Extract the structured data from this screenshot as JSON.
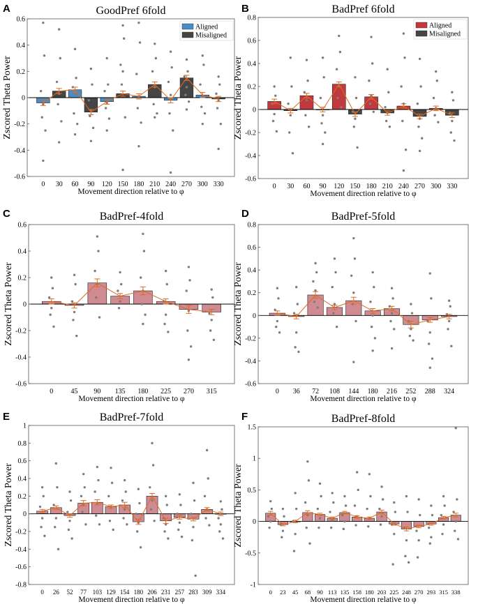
{
  "figure": {
    "xlabel": "Movement direction relative to φ",
    "ylabel": "Zscored Theta Power"
  },
  "colors": {
    "aligned_blue": "#4a8cc4",
    "misaligned_gray": "#454545",
    "aligned_red": "#c1393f",
    "pink_bar": "#cf8a92",
    "line_orange": "#e06a1e",
    "dot_gray": "#7d7d7d"
  },
  "chart_data": [
    {
      "letter": "A",
      "type": "bar",
      "title": "GoodPref 6fold",
      "xlabel": "Movement direction relative to φ",
      "ylabel": "Zscored Theta Power",
      "categories": [
        "0",
        "30",
        "60",
        "90",
        "120",
        "150",
        "180",
        "210",
        "240",
        "270",
        "300",
        "330"
      ],
      "values": [
        -0.04,
        0.05,
        0.06,
        -0.11,
        -0.03,
        0.03,
        0.01,
        0.1,
        -0.02,
        0.15,
        0.02,
        -0.01
      ],
      "errors": [
        0.02,
        0.02,
        0.02,
        0.02,
        0.02,
        0.02,
        0.02,
        0.02,
        0.02,
        0.02,
        0.02,
        0.02
      ],
      "bar_groups": [
        "aligned",
        "misaligned",
        "aligned",
        "misaligned",
        "aligned",
        "misaligned",
        "aligned",
        "misaligned",
        "aligned",
        "misaligned",
        "aligned",
        "misaligned"
      ],
      "legend": [
        {
          "label": "Aligned",
          "group": "aligned"
        },
        {
          "label": "Misaligned",
          "group": "misaligned"
        }
      ],
      "ylim": [
        -0.6,
        0.6
      ],
      "yticks": [
        -0.6,
        -0.4,
        -0.2,
        0,
        0.2,
        0.4,
        0.6
      ],
      "ytick_labels": [
        "-0.6",
        "-0.4",
        "-0.2",
        "0",
        "0.2",
        "0.4",
        "0.6"
      ],
      "scatter": [
        [
          0.57,
          0.32,
          0.05,
          -0.05,
          -0.15,
          -0.25,
          -0.48
        ],
        [
          0.52,
          0.3,
          0.12,
          0.03,
          -0.05,
          -0.18,
          -0.34
        ],
        [
          0.37,
          0.15,
          0.08,
          0.02,
          -0.12,
          -0.2,
          -0.28
        ],
        [
          0.22,
          0.1,
          -0.02,
          -0.1,
          -0.14,
          -0.23,
          -0.33
        ],
        [
          0.3,
          0.1,
          0.05,
          -0.04,
          -0.08,
          -0.16,
          -0.25
        ],
        [
          0.55,
          0.45,
          0.25,
          0.2,
          0.1,
          -0.15,
          -0.55
        ],
        [
          0.57,
          0.42,
          0.18,
          0.01,
          -0.08,
          -0.19,
          -0.37
        ],
        [
          0.41,
          0.3,
          0.2,
          0.08,
          -0.05,
          -0.12,
          -0.15
        ],
        [
          0.35,
          0.23,
          0.12,
          0.02,
          -0.12,
          -0.25,
          -0.57
        ],
        [
          0.29,
          0.2,
          0.16,
          0.08,
          0.02,
          -0.03,
          -0.09
        ],
        [
          0.32,
          0.25,
          0.1,
          0.01,
          -0.07,
          -0.12,
          -0.2
        ],
        [
          0.16,
          0.1,
          0.03,
          -0.02,
          -0.08,
          -0.2,
          -0.39
        ]
      ]
    },
    {
      "letter": "B",
      "type": "bar",
      "title": "BadPref 6fold",
      "xlabel": "Movement direction relative to φ",
      "ylabel": "Zscored Theta Power",
      "categories": [
        "0",
        "30",
        "60",
        "90",
        "120",
        "150",
        "180",
        "210",
        "240",
        "270",
        "300",
        "330"
      ],
      "values": [
        0.07,
        -0.01,
        0.12,
        0.0,
        0.22,
        -0.04,
        0.11,
        -0.03,
        0.03,
        -0.06,
        0.01,
        -0.05
      ],
      "errors": [
        0.02,
        0.02,
        0.02,
        0.02,
        0.02,
        0.02,
        0.02,
        0.02,
        0.02,
        0.02,
        0.02,
        0.02
      ],
      "bar_groups": [
        "aligned",
        "misaligned",
        "aligned",
        "misaligned",
        "aligned",
        "misaligned",
        "aligned",
        "misaligned",
        "aligned",
        "misaligned",
        "aligned",
        "misaligned"
      ],
      "legend": [
        {
          "label": "Aligned",
          "group": "aligned"
        },
        {
          "label": "Misaligned",
          "group": "misaligned"
        }
      ],
      "ylim": [
        -0.6,
        0.8
      ],
      "yticks": [
        -0.6,
        -0.4,
        -0.2,
        0,
        0.2,
        0.4,
        0.6,
        0.8
      ],
      "ytick_labels": [
        "-0.6",
        "-0.4",
        "-0.2",
        "0",
        "0.2",
        "0.4",
        "0.6",
        "0.8"
      ],
      "scatter": [
        [
          0.2,
          0.12,
          0.05,
          -0.04,
          -0.1,
          -0.19
        ],
        [
          0.45,
          0.2,
          0.05,
          -0.05,
          -0.2,
          -0.38
        ],
        [
          0.43,
          0.25,
          0.15,
          0.08,
          -0.05,
          -0.15
        ],
        [
          0.45,
          0.28,
          0.1,
          -0.05,
          -0.12,
          -0.2,
          -0.3
        ],
        [
          0.64,
          0.5,
          0.35,
          0.2,
          0.1,
          0.02
        ],
        [
          0.28,
          0.1,
          -0.02,
          -0.08,
          -0.15,
          -0.33
        ],
        [
          0.63,
          0.4,
          0.25,
          0.12,
          0.05,
          -0.02
        ],
        [
          0.35,
          0.15,
          0.02,
          -0.03,
          -0.1,
          -0.15
        ],
        [
          0.66,
          0.45,
          0.2,
          0.05,
          -0.1,
          -0.35,
          -0.53
        ],
        [
          0.44,
          0.2,
          0.05,
          -0.08,
          -0.15,
          -0.25,
          -0.36
        ],
        [
          0.33,
          0.25,
          0.1,
          0.01,
          -0.05,
          -0.11
        ],
        [
          0.15,
          0.08,
          -0.03,
          -0.1,
          -0.2,
          -0.27
        ]
      ]
    },
    {
      "letter": "C",
      "type": "bar",
      "title": "BadPref-4fold",
      "xlabel": "Movement direction relative to φ",
      "ylabel": "Zscored Theta Power",
      "categories": [
        "0",
        "45",
        "90",
        "135",
        "180",
        "225",
        "270",
        "315"
      ],
      "values": [
        0.02,
        -0.01,
        0.16,
        0.06,
        0.1,
        0.02,
        -0.04,
        -0.06
      ],
      "errors": [
        0.02,
        0.02,
        0.03,
        0.02,
        0.03,
        0.02,
        0.03,
        0.02
      ],
      "ylim": [
        -0.6,
        0.6
      ],
      "yticks": [
        -0.6,
        -0.4,
        -0.2,
        0,
        0.2,
        0.4,
        0.6
      ],
      "ytick_labels": [
        "-0.6",
        "-0.4",
        "-0.2",
        "0",
        "0.2",
        "0.4",
        "0.6"
      ],
      "scatter": [
        [
          0.2,
          0.12,
          0.05,
          -0.03,
          -0.08,
          -0.17
        ],
        [
          0.22,
          0.15,
          0.02,
          -0.06,
          -0.12,
          -0.24
        ],
        [
          0.51,
          0.4,
          0.25,
          0.15,
          0.05,
          -0.1
        ],
        [
          0.24,
          0.15,
          0.1,
          0.02,
          -0.03
        ],
        [
          0.53,
          0.4,
          0.2,
          0.1,
          0.0,
          -0.08,
          -0.15
        ],
        [
          0.25,
          0.15,
          0.02,
          -0.08,
          -0.15,
          -0.21
        ],
        [
          0.28,
          0.18,
          0.1,
          -0.05,
          -0.2,
          -0.32,
          -0.42
        ],
        [
          0.11,
          0.05,
          -0.07,
          -0.12,
          -0.2,
          -0.27
        ]
      ]
    },
    {
      "letter": "D",
      "type": "bar",
      "title": "BadPref-5fold",
      "xlabel": "Movement direction relative to φ",
      "ylabel": "Zscored Theta Power",
      "categories": [
        "0",
        "36",
        "72",
        "108",
        "144",
        "180",
        "216",
        "252",
        "288",
        "324"
      ],
      "values": [
        0.02,
        -0.01,
        0.18,
        0.07,
        0.13,
        0.04,
        0.06,
        -0.08,
        -0.04,
        -0.01
      ],
      "errors": [
        0.02,
        0.02,
        0.03,
        0.02,
        0.03,
        0.02,
        0.02,
        0.03,
        0.02,
        0.02
      ],
      "ylim": [
        -0.6,
        0.8
      ],
      "yticks": [
        -0.6,
        -0.4,
        -0.2,
        0,
        0.2,
        0.4,
        0.6,
        0.8
      ],
      "ytick_labels": [
        "-0.6",
        "-0.4",
        "-0.2",
        "0",
        "0.2",
        "0.4",
        "0.6",
        "0.8"
      ],
      "scatter": [
        [
          0.24,
          0.15,
          0.05,
          -0.05,
          -0.1,
          -0.15
        ],
        [
          0.25,
          0.1,
          0.02,
          -0.15,
          -0.28,
          -0.32
        ],
        [
          0.46,
          0.38,
          0.3,
          0.22,
          0.12,
          0.07
        ],
        [
          0.5,
          0.38,
          0.25,
          0.1,
          0.02,
          -0.1
        ],
        [
          0.68,
          0.5,
          0.35,
          0.2,
          0.1,
          -0.05,
          -0.41
        ],
        [
          0.38,
          0.25,
          0.12,
          0.0,
          -0.1,
          -0.2,
          -0.31
        ],
        [
          0.24,
          0.15,
          0.08,
          0.02,
          -0.05,
          -0.12,
          -0.29
        ],
        [
          0.1,
          0.02,
          -0.05,
          -0.12,
          -0.18,
          -0.22
        ],
        [
          0.37,
          0.15,
          -0.05,
          -0.15,
          -0.25,
          -0.38,
          -0.46
        ],
        [
          0.13,
          0.08,
          0.01,
          -0.05,
          -0.12,
          -0.27
        ]
      ]
    },
    {
      "letter": "E",
      "type": "bar",
      "title": "BadPref-7fold",
      "xlabel": "Movement direction relative to φ",
      "ylabel": "Zscored Theta Power",
      "categories": [
        "0",
        "26",
        "52",
        "77",
        "103",
        "129",
        "154",
        "180",
        "206",
        "231",
        "257",
        "283",
        "309",
        "334"
      ],
      "values": [
        0.03,
        0.07,
        -0.02,
        0.12,
        0.13,
        0.08,
        0.1,
        -0.09,
        0.2,
        -0.08,
        -0.04,
        -0.06,
        0.05,
        0.0
      ],
      "errors": [
        0.02,
        0.02,
        0.02,
        0.03,
        0.03,
        0.02,
        0.03,
        0.03,
        0.03,
        0.03,
        0.02,
        0.02,
        0.02,
        0.02
      ],
      "ylim": [
        -0.8,
        1.0
      ],
      "yticks": [
        -0.8,
        -0.6,
        -0.4,
        -0.2,
        0,
        0.2,
        0.4,
        0.6,
        0.8,
        1.0
      ],
      "ytick_labels": [
        "-0.8",
        "-0.6",
        "-0.4",
        "-0.2",
        "0",
        "0.2",
        "0.4",
        "0.6",
        "0.8",
        "1"
      ],
      "scatter": [
        [
          0.3,
          0.2,
          0.08,
          -0.05,
          -0.15,
          -0.25
        ],
        [
          0.57,
          0.3,
          0.1,
          -0.05,
          -0.15,
          -0.4
        ],
        [
          0.25,
          0.15,
          0.02,
          -0.08,
          -0.18,
          -0.28
        ],
        [
          0.45,
          0.3,
          0.2,
          0.1,
          0.02,
          -0.12
        ],
        [
          0.53,
          0.38,
          0.25,
          0.12,
          -0.02,
          -0.12
        ],
        [
          0.52,
          0.35,
          0.2,
          0.08,
          -0.08,
          -0.18
        ],
        [
          0.38,
          0.25,
          0.15,
          0.05,
          -0.05,
          -0.12
        ],
        [
          0.28,
          0.12,
          0.0,
          -0.1,
          -0.2,
          -0.38
        ],
        [
          0.8,
          0.55,
          0.3,
          0.15,
          0.05,
          -0.08
        ],
        [
          0.2,
          0.1,
          -0.05,
          -0.12,
          -0.2,
          -0.28
        ],
        [
          0.22,
          0.1,
          0.0,
          -0.1,
          -0.18,
          -0.26
        ],
        [
          0.35,
          0.15,
          0.0,
          -0.15,
          -0.3,
          -0.7
        ],
        [
          0.72,
          0.4,
          0.2,
          0.05,
          -0.05,
          -0.13
        ],
        [
          0.14,
          0.05,
          -0.05,
          -0.12,
          -0.2,
          -0.28
        ]
      ]
    },
    {
      "letter": "F",
      "type": "bar",
      "title": "BadPref-8fold",
      "xlabel": "Movement direction relative to φ",
      "ylabel": "Zscored Theta Power",
      "categories": [
        "0",
        "23",
        "45",
        "68",
        "90",
        "113",
        "135",
        "158",
        "180",
        "203",
        "225",
        "248",
        "270",
        "293",
        "315",
        "338"
      ],
      "values": [
        0.13,
        -0.05,
        0.0,
        0.14,
        0.11,
        0.05,
        0.14,
        0.07,
        0.05,
        0.15,
        -0.04,
        -0.12,
        -0.08,
        -0.04,
        0.06,
        0.1
      ],
      "errors": [
        0.03,
        0.02,
        0.02,
        0.03,
        0.02,
        0.02,
        0.02,
        0.02,
        0.02,
        0.03,
        0.02,
        0.03,
        0.02,
        0.02,
        0.02,
        0.03
      ],
      "ylim": [
        -1.0,
        1.5
      ],
      "yticks": [
        -1.0,
        -0.5,
        0,
        0.5,
        1.0,
        1.5
      ],
      "ytick_labels": [
        "-1",
        "-0.5",
        "0",
        "0.5",
        "1",
        "1.5"
      ],
      "scatter": [
        [
          0.32,
          0.2,
          0.08,
          0.0,
          -0.1
        ],
        [
          0.2,
          0.08,
          -0.05,
          -0.15,
          -0.25
        ],
        [
          0.45,
          0.2,
          0.0,
          -0.2,
          -0.47
        ],
        [
          0.95,
          0.65,
          0.3,
          0.1,
          -0.1,
          -0.35
        ],
        [
          0.6,
          0.4,
          0.2,
          0.05,
          -0.1
        ],
        [
          0.45,
          0.3,
          0.15,
          0.02,
          -0.1
        ],
        [
          0.4,
          0.25,
          0.1,
          0.0,
          -0.12
        ],
        [
          0.78,
          0.5,
          0.25,
          0.08,
          -0.06
        ],
        [
          0.75,
          0.4,
          0.2,
          0.05,
          -0.08
        ],
        [
          0.55,
          0.35,
          0.2,
          0.08,
          -0.05
        ],
        [
          0.3,
          0.15,
          -0.05,
          -0.2,
          -0.68
        ],
        [
          0.4,
          0.15,
          -0.1,
          -0.3,
          -0.55,
          -0.65
        ],
        [
          0.35,
          0.1,
          -0.15,
          -0.3,
          -0.57
        ],
        [
          0.25,
          0.1,
          -0.1,
          -0.25,
          -0.35
        ],
        [
          0.4,
          0.25,
          0.1,
          -0.05,
          -0.2
        ],
        [
          1.48,
          0.35,
          0.15,
          0.0,
          -0.15,
          -0.28
        ]
      ]
    }
  ]
}
